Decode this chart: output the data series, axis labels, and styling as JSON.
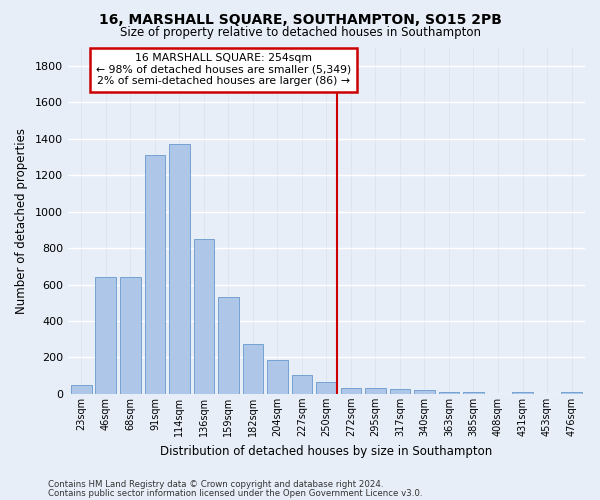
{
  "title": "16, MARSHALL SQUARE, SOUTHAMPTON, SO15 2PB",
  "subtitle": "Size of property relative to detached houses in Southampton",
  "xlabel": "Distribution of detached houses by size in Southampton",
  "ylabel": "Number of detached properties",
  "bar_labels": [
    "23sqm",
    "46sqm",
    "68sqm",
    "91sqm",
    "114sqm",
    "136sqm",
    "159sqm",
    "182sqm",
    "204sqm",
    "227sqm",
    "250sqm",
    "272sqm",
    "295sqm",
    "317sqm",
    "340sqm",
    "363sqm",
    "385sqm",
    "408sqm",
    "431sqm",
    "453sqm",
    "476sqm"
  ],
  "bar_values": [
    50,
    640,
    640,
    1310,
    1370,
    850,
    530,
    275,
    185,
    105,
    65,
    35,
    35,
    25,
    20,
    10,
    10,
    2,
    10,
    2,
    10
  ],
  "bar_color": "#aec6e8",
  "bar_edge_color": "#6699cc",
  "background_color": "#e8eef8",
  "grid_color": "#d0d8e8",
  "vline_index": 10.42,
  "vline_color": "#cc0000",
  "annotation_text": "16 MARSHALL SQUARE: 254sqm\n← 98% of detached houses are smaller (5,349)\n2% of semi-detached houses are larger (86) →",
  "annotation_box_color": "#ffffff",
  "annotation_box_edge": "#cc0000",
  "ylim": [
    0,
    1900
  ],
  "yticks": [
    0,
    200,
    400,
    600,
    800,
    1000,
    1200,
    1400,
    1600,
    1800
  ],
  "footer_line1": "Contains HM Land Registry data © Crown copyright and database right 2024.",
  "footer_line2": "Contains public sector information licensed under the Open Government Licence v3.0."
}
